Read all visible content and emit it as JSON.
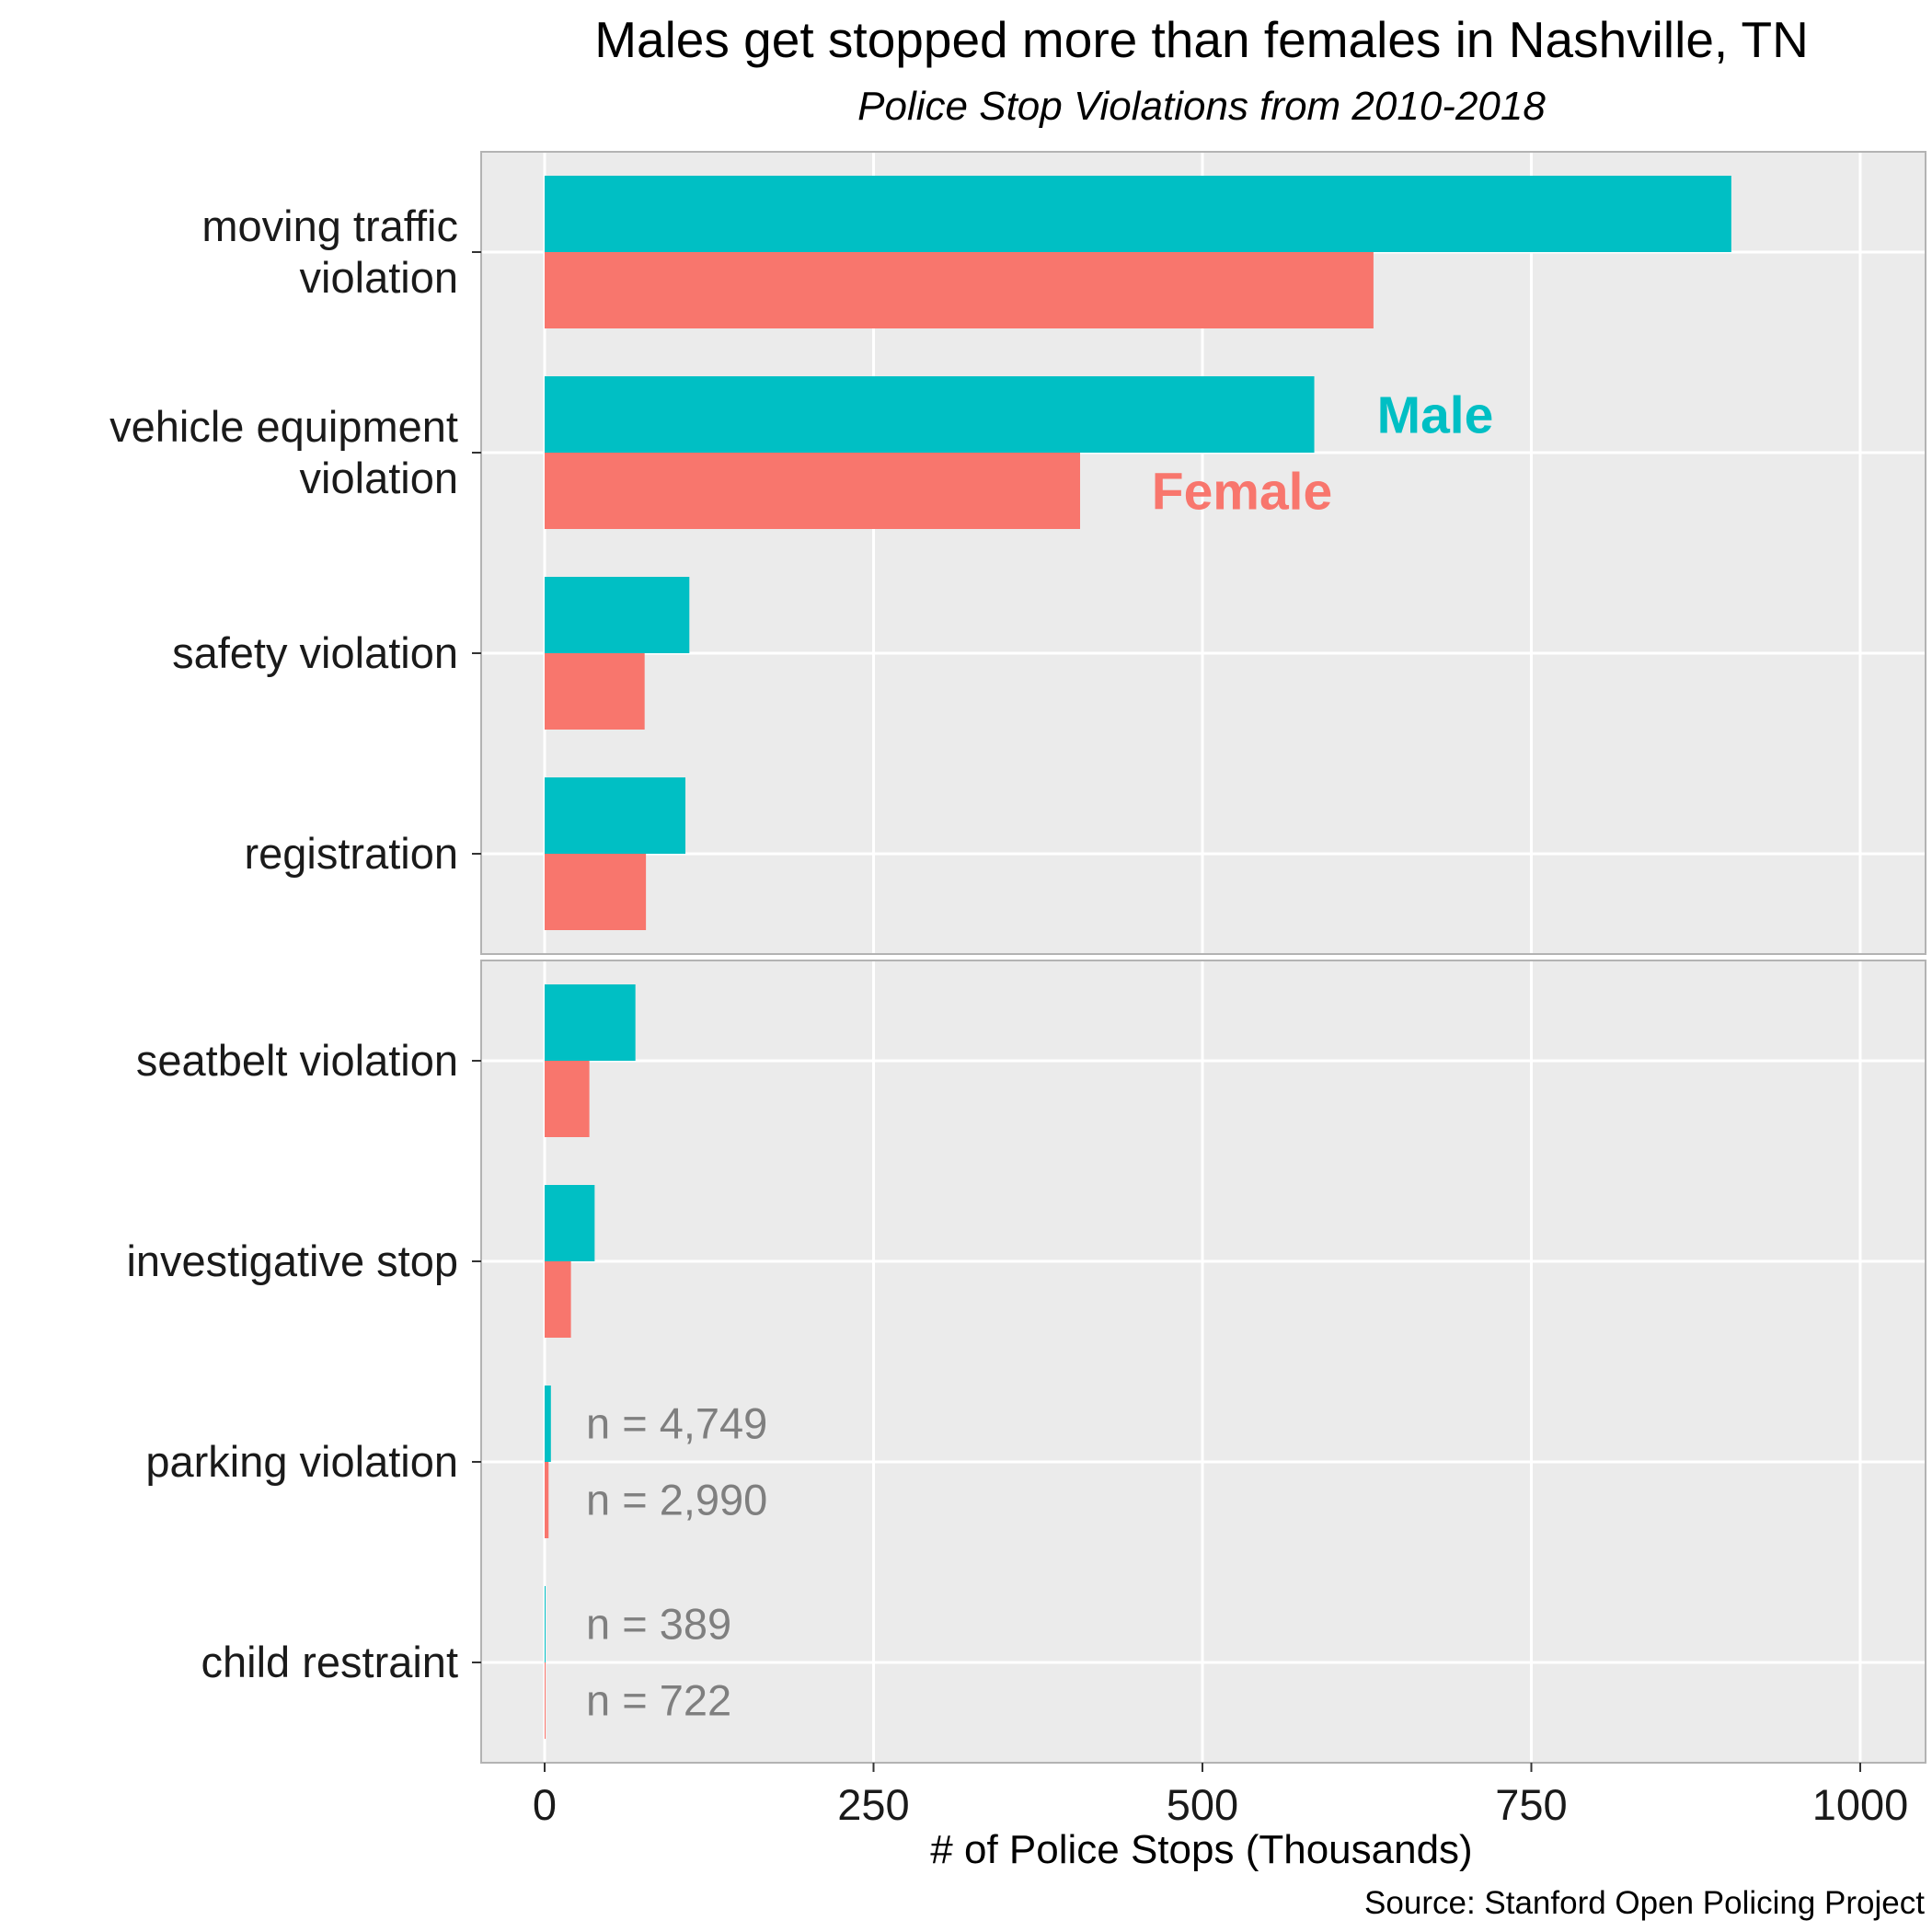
{
  "chart_data": {
    "type": "bar",
    "orientation": "horizontal",
    "title": "Males get stopped more than females in Nashville, TN",
    "subtitle": "Police Stop Violations from 2010-2018",
    "xlabel": "# of Police Stops (Thousands)",
    "caption": "Source: Stanford Open Policing Project",
    "xlim": [
      -20,
      1000
    ],
    "xticks": [
      0,
      250,
      500,
      750,
      1000
    ],
    "grid": true,
    "panel_background": "#ebebeb",
    "colors": {
      "male": "#00bfc4",
      "female": "#f8766d"
    },
    "series_labels": [
      {
        "series": "male",
        "text": "Male"
      },
      {
        "series": "female",
        "text": "Female"
      }
    ],
    "panels": [
      {
        "categories": [
          [
            "moving traffic",
            "violation"
          ],
          [
            "vehicle equipment",
            "violation"
          ],
          [
            "safety violation"
          ],
          [
            "registration"
          ]
        ],
        "male": [
          902,
          585,
          110,
          107
        ],
        "female": [
          630,
          407,
          76,
          77
        ],
        "annotations": []
      },
      {
        "categories": [
          [
            "seatbelt violation"
          ],
          [
            "investigative stop"
          ],
          [
            "parking violation"
          ],
          [
            "child restraint"
          ]
        ],
        "male": [
          69,
          38,
          4.749,
          0.389
        ],
        "female": [
          34,
          20,
          2.99,
          0.722
        ],
        "annotations": [
          {
            "category_index": 2,
            "series": "male",
            "text": "n = 4,749"
          },
          {
            "category_index": 2,
            "series": "female",
            "text": "n = 2,990"
          },
          {
            "category_index": 3,
            "series": "male",
            "text": "n = 389"
          },
          {
            "category_index": 3,
            "series": "female",
            "text": "n = 722"
          }
        ]
      }
    ]
  }
}
